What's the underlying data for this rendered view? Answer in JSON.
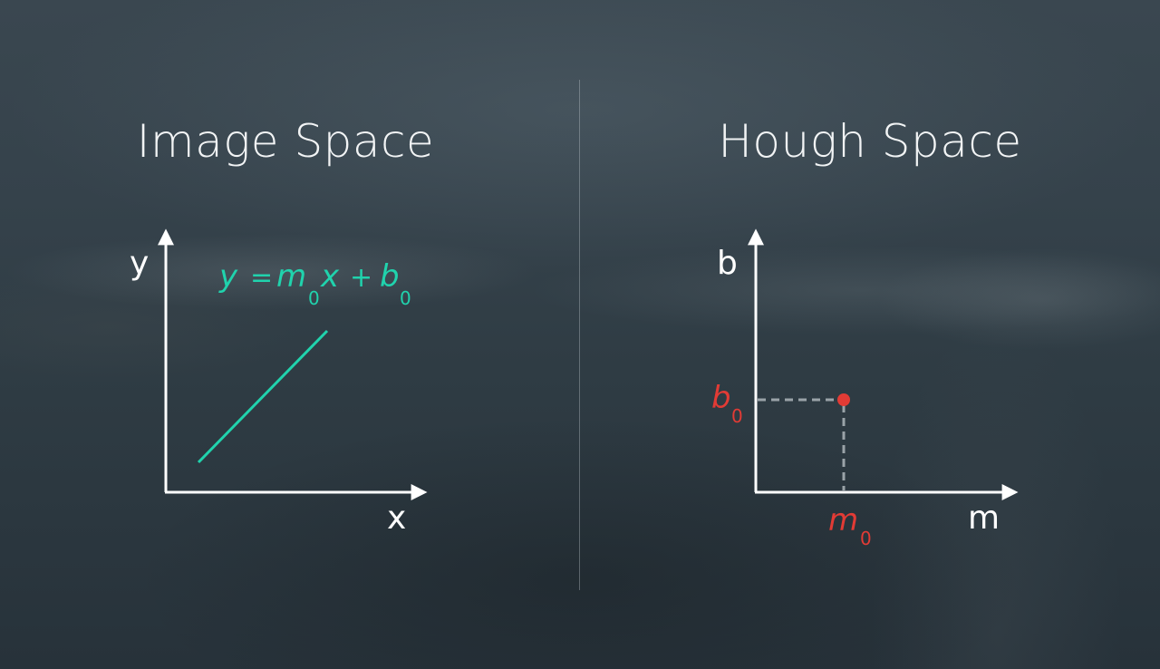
{
  "image_space": {
    "title": "Image Space",
    "y_axis_label": "y",
    "x_axis_label": "x",
    "equation": {
      "y": "y",
      "equals": "=",
      "m": "m",
      "m_sub": "0",
      "x": "x",
      "plus": "+",
      "b": "b",
      "b_sub": "0"
    }
  },
  "hough_space": {
    "title": "Hough Space",
    "y_axis_label": "b",
    "x_axis_label": "m",
    "point_b": "b",
    "point_b_sub": "0",
    "point_m": "m",
    "point_m_sub": "0"
  },
  "colors": {
    "line_accent": "#20d3ad",
    "point_accent": "#e23b35",
    "axis": "#ffffff",
    "guide": "#9aa3a8"
  }
}
